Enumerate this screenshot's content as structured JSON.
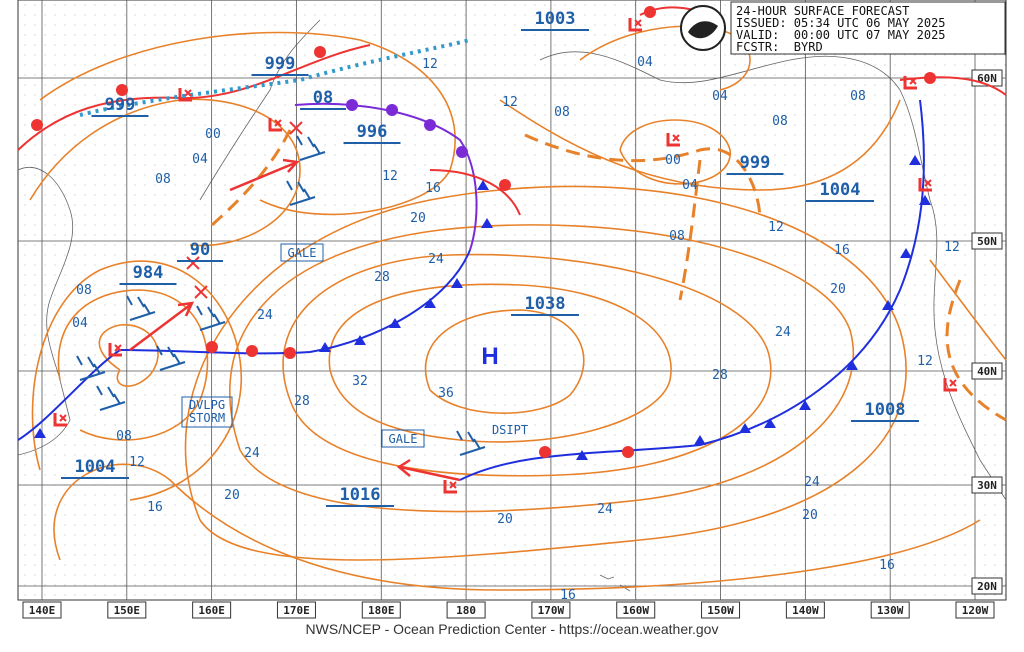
{
  "header": {
    "lines": [
      "24-HOUR SURFACE FORECAST",
      "ISSUED: 05:34 UTC 06 MAY 2025",
      "VALID:  00:00 UTC 07 MAY 2025",
      "FCSTR:  BYRD"
    ]
  },
  "longitudes": [
    "140E",
    "150E",
    "160E",
    "170E",
    "180E",
    "180",
    "170W",
    "160W",
    "150W",
    "140W",
    "130W",
    "120W"
  ],
  "latitudes": [
    "60N",
    "50N",
    "40N",
    "30N",
    "20N"
  ],
  "pressure_centers": [
    "1003",
    "999",
    "999",
    "08",
    "996",
    "984",
    "90",
    "1004",
    "1038",
    "1004",
    "999",
    "1008",
    "1016"
  ],
  "isobar_labels": [
    "12",
    "12",
    "08",
    "04",
    "04",
    "08",
    "08",
    "00",
    "04",
    "08",
    "00",
    "04",
    "08",
    "12",
    "16",
    "20",
    "24",
    "28",
    "12",
    "16",
    "20",
    "24",
    "28",
    "24",
    "32",
    "36",
    "28",
    "24",
    "20",
    "16",
    "12",
    "08",
    "08",
    "04",
    "20",
    "24",
    "24",
    "20",
    "16",
    "16",
    "12",
    "12"
  ],
  "annotations": {
    "gale_1": "GALE",
    "gale_2": "GALE",
    "storm": [
      "DVLPG",
      "STORM"
    ],
    "dissipating": "DSIPT",
    "high": "H"
  },
  "footer": "NWS/NCEP - Ocean Prediction Center - https://ocean.weather.gov"
}
